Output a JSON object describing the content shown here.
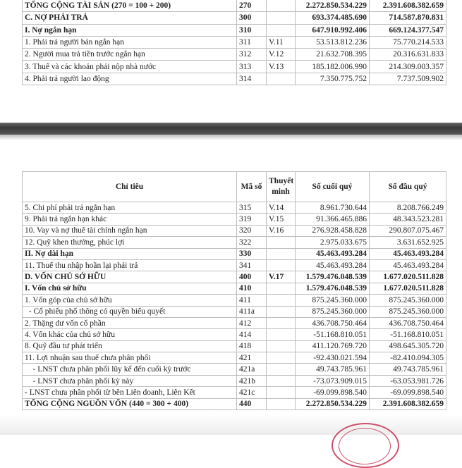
{
  "top_rows": [
    {
      "label": "TỔNG CỘNG TÀI SẢN (270 = 100 + 200)",
      "code": "270",
      "note": "",
      "end": "2.272.850.534.229",
      "begin": "2.391.608.382.659",
      "bold": true
    },
    {
      "label": "C. NỢ PHẢI TRẢ",
      "code": "300",
      "note": "",
      "end": "693.374.485.690",
      "begin": "714.587.870.831",
      "bold": true
    },
    {
      "label": "I. Nợ ngắn hạn",
      "code": "310",
      "note": "",
      "end": "647.910.992.406",
      "begin": "669.124.377.547",
      "bold": true
    },
    {
      "label": "1. Phải trả người bán ngắn hạn",
      "code": "311",
      "note": "V.11",
      "end": "53.513.812.236",
      "begin": "75.770.214.533",
      "bold": false
    },
    {
      "label": "2. Người mua trả tiền trước ngắn hạn",
      "code": "312",
      "note": "V.12",
      "end": "21.632.708.395",
      "begin": "20.316.631.833",
      "bold": false
    },
    {
      "label": "3. Thuế và các khoản phải nộp nhà nước",
      "code": "313",
      "note": "V.13",
      "end": "185.182.006.990",
      "begin": "214.309.003.357",
      "bold": false
    },
    {
      "label": "4. Phải trả người lao động",
      "code": "314",
      "note": "",
      "end": "7.350.775.752",
      "begin": "7.737.509.902",
      "bold": false
    }
  ],
  "header": {
    "label": "Chỉ tiêu",
    "code": "Mã số",
    "note": "Thuyết minh",
    "end": "Số cuối quý",
    "begin": "Số đầu quý"
  },
  "bottom_rows": [
    {
      "label": "5. Chi phí phải trả ngắn hạn",
      "code": "315",
      "note": "V.14",
      "end": "8.961.730.644",
      "begin": "8.208.766.249",
      "bold": false
    },
    {
      "label": "9. Phải trả ngắn hạn khác",
      "code": "319",
      "note": "V.15",
      "end": "91.366.465.886",
      "begin": "48.343.523.281",
      "bold": false
    },
    {
      "label": "10. Vay và nợ thuê tài chính ngắn hạn",
      "code": "320",
      "note": "V.16",
      "end": "276.928.458.828",
      "begin": "290.807.075.467",
      "bold": false
    },
    {
      "label": "12. Quỹ khen thưởng, phúc lợi",
      "code": "322",
      "note": "",
      "end": "2.975.033.675",
      "begin": "3.631.652.925",
      "bold": false
    },
    {
      "label": "II. Nợ dài hạn",
      "code": "330",
      "note": "",
      "end": "45.463.493.284",
      "begin": "45.463.493.284",
      "bold": true
    },
    {
      "label": "11. Thuế thu nhập hoãn lại phải trả",
      "code": "341",
      "note": "",
      "end": "45.463.493.284",
      "begin": "45.463.493.284",
      "bold": false
    },
    {
      "label": "D. VỐN CHỦ SỞ HỮU",
      "code": "400",
      "note": "V.17",
      "end": "1.579.476.048.539",
      "begin": "1.677.020.511.828",
      "bold": true
    },
    {
      "label": "I. Vốn chủ sở hữu",
      "code": "410",
      "note": "",
      "end": "1.579.476.048.539",
      "begin": "1.677.020.511.828",
      "bold": true
    },
    {
      "label": "1. Vốn góp của chủ sở hữu",
      "code": "411",
      "note": "",
      "end": "875.245.360.000",
      "begin": "875.245.360.000",
      "bold": false
    },
    {
      "label": "  - Cổ phiếu phổ thông có quyền biểu quyết",
      "code": "411a",
      "note": "",
      "end": "875.245.360.000",
      "begin": "875.245.360.000",
      "bold": false
    },
    {
      "label": "2. Thặng dư vốn cổ phần",
      "code": "412",
      "note": "",
      "end": "436.708.750.464",
      "begin": "436.708.750.464",
      "bold": false
    },
    {
      "label": "4. Vốn khác của chủ sở hữu",
      "code": "414",
      "note": "",
      "end": "-51.168.810.051",
      "begin": "-51.168.810.051",
      "bold": false
    },
    {
      "label": "8. Quỹ đầu tư phát triển",
      "code": "418",
      "note": "",
      "end": "411.120.769.720",
      "begin": "498.645.305.720",
      "bold": false
    },
    {
      "label": "11. Lợi nhuận sau thuế chưa phân phối",
      "code": "421",
      "note": "",
      "end": "-92.430.021.594",
      "begin": "-82.410.094.305",
      "bold": false
    },
    {
      "label": "    - LNST chưa phân phối lũy kế đến cuối kỳ trước",
      "code": "421a",
      "note": "",
      "end": "49.743.785.961",
      "begin": "49.743.785.961",
      "bold": false
    },
    {
      "label": "    - LNST chưa phân phối kỳ này",
      "code": "421b",
      "note": "",
      "end": "-73.073.909.015",
      "begin": "-63.053.981.726",
      "bold": false
    },
    {
      "label": "- LNST chưa phân phối từ bên Liên doanh, Liên Kết",
      "code": "421c",
      "note": "",
      "end": "-69.099.898.540",
      "begin": "-69.099.898.540",
      "bold": false
    },
    {
      "label": "TỔNG CỘNG NGUỒN VỐN (440 = 300 + 400)",
      "code": "440",
      "note": "",
      "end": "2.272.850.534.229",
      "begin": "2.391.608.382.659",
      "bold": true
    }
  ]
}
